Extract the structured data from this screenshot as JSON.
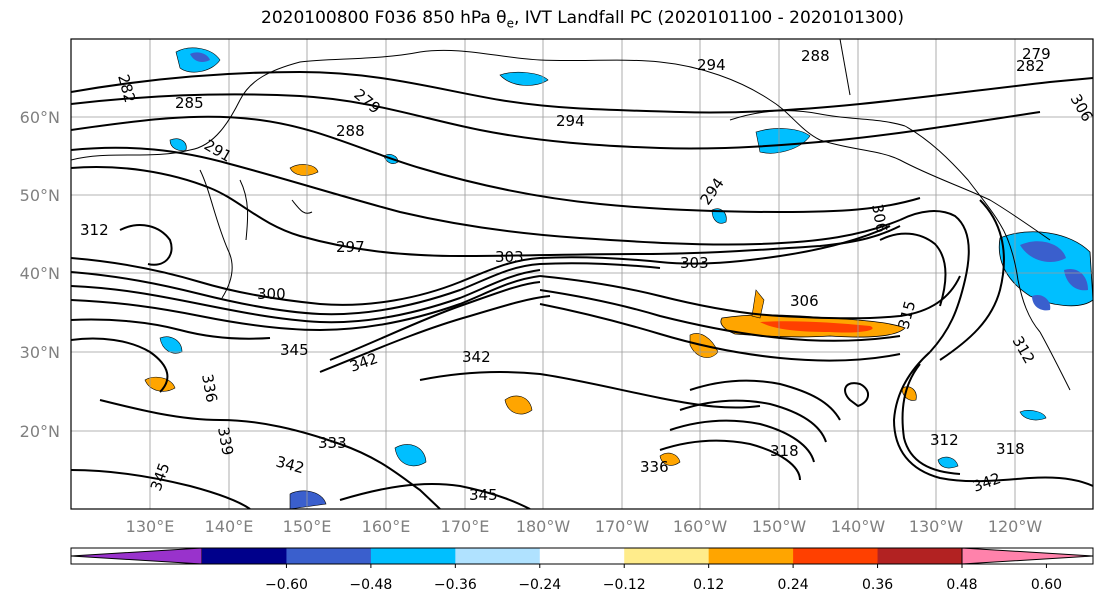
{
  "figure": {
    "title": "2020100800 F036 850 hPa θe, IVT Landfall PC (2020101100 - 2020101300)",
    "lat_labels": [
      "60°N",
      "50°N",
      "40°N",
      "30°N",
      "20°N"
    ],
    "lon_labels": [
      "130°E",
      "140°E",
      "150°E",
      "160°E",
      "170°E",
      "180°W",
      "170°W",
      "160°W",
      "150°W",
      "140°W",
      "130°W",
      "120°W"
    ],
    "contour_labels": [
      "282",
      "285",
      "279",
      "291",
      "288",
      "294",
      "294",
      "288",
      "294",
      "279",
      "282",
      "306",
      "297",
      "300",
      "303",
      "306",
      "303",
      "312",
      "345",
      "342",
      "342",
      "336",
      "333",
      "339",
      "342",
      "345",
      "336",
      "318",
      "312",
      "318",
      "345",
      "315",
      "342",
      "312",
      "306"
    ]
  },
  "colorbar": {
    "ticks": [
      "−0.60",
      "−0.48",
      "−0.36",
      "−0.24",
      "−0.12",
      "0.12",
      "0.24",
      "0.36",
      "0.48",
      "0.60"
    ],
    "colors": [
      "#9932cc",
      "#00008b",
      "#3a5fcd",
      "#00bfff",
      "#b0e2ff",
      "#ffffff",
      "#ffec8b",
      "#ffa500",
      "#ff4000",
      "#b22222",
      "#ff82ab"
    ]
  },
  "map_data": {
    "type": "contour-map",
    "projection": "PlateCarree",
    "lon_range": [
      118,
      248
    ],
    "lat_range": [
      10,
      70
    ],
    "lon_ticks": [
      130,
      140,
      150,
      160,
      170,
      180,
      190,
      200,
      210,
      220,
      230,
      240
    ],
    "lat_ticks": [
      20,
      30,
      40,
      50,
      60
    ],
    "contour_field": "850 hPa θe (K)",
    "fill_field": "IVT Landfall PC",
    "fill_levels": [
      -0.6,
      -0.48,
      -0.36,
      -0.24,
      -0.12,
      0.12,
      0.24,
      0.36,
      0.48,
      0.6
    ],
    "grid": true
  }
}
